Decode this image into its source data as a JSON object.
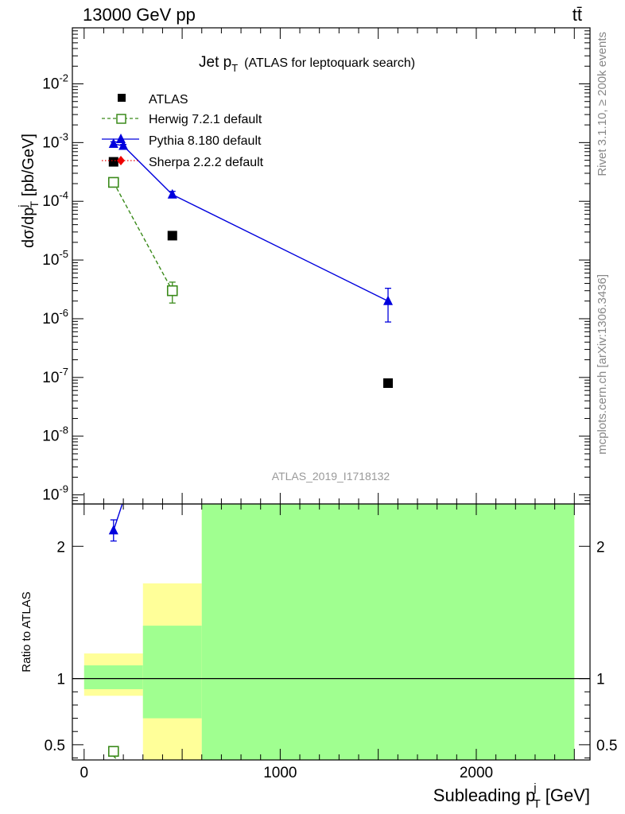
{
  "header": {
    "energy": "13000 GeV pp",
    "process": "tt̄"
  },
  "side": {
    "rivet": "Rivet 3.1.10, ≥ 200k events",
    "mcplots": "mcplots.cern.ch [arXiv:1306.3436]"
  },
  "chart_data": [
    {
      "type": "scatter",
      "title": "Jet p",
      "title_sub": "T",
      "title_note": "(ATLAS for leptoquark search)",
      "analysis": "ATLAS_2019_I1718132",
      "ylabel": "dσ/dp",
      "ylabel_sup": "j",
      "ylabel_sub": "T",
      "ylabel_unit": "[pb/GeV]",
      "yscale": "log",
      "ylim": [
        7e-10,
        0.09
      ],
      "xlim": [
        -60,
        2580
      ],
      "ytick_labels": [
        "10",
        "10",
        "10",
        "10",
        "10",
        "10",
        "10",
        "10"
      ],
      "ytick_exponents": [
        "-2",
        "-3",
        "-4",
        "-5",
        "-6",
        "-7",
        "-8",
        "-9"
      ],
      "legend_position": "top-left",
      "series": [
        {
          "name": "ATLAS",
          "color": "#000000",
          "marker": "square",
          "x": [
            150,
            450,
            1550
          ],
          "y": [
            0.00047,
            2.6e-05,
            8e-08
          ]
        },
        {
          "name": "Herwig 7.2.1 default",
          "color": "#3a8a1a",
          "marker": "open-square",
          "line": "dashed",
          "x": [
            150,
            450
          ],
          "y": [
            0.00021,
            3e-06
          ],
          "err_low": [
            0.00019,
            1.85e-06
          ],
          "err_high": [
            0.00023,
            4.2e-06
          ]
        },
        {
          "name": "Pythia 8.180 default",
          "color": "#0000dd",
          "marker": "triangle",
          "line": "solid",
          "x": [
            150,
            200,
            450,
            1550
          ],
          "y": [
            0.00095,
            0.00088,
            0.00013,
            2e-06
          ],
          "err_low": [
            0.00088,
            0.00083,
            0.000115,
            8.8e-07
          ],
          "err_high": [
            0.00103,
            0.00093,
            0.000148,
            3.3e-06
          ]
        },
        {
          "name": "Sherpa 2.2.2 default",
          "color": "#ee0000",
          "marker": "diamond",
          "line": "dotted",
          "x": [],
          "y": []
        }
      ]
    },
    {
      "type": "scatter",
      "ylabel": "Ratio to ATLAS",
      "xlabel": "Subleading p",
      "xlabel_sup": "j",
      "xlabel_sub": "T",
      "xlabel_unit": "[GeV]",
      "xlim": [
        -60,
        2580
      ],
      "ylim": [
        0.385,
        2.32
      ],
      "xticks": [
        0,
        1000,
        2000
      ],
      "xtick_labels": [
        "0",
        "1000",
        "2000"
      ],
      "yticks": [
        0.5,
        1,
        2
      ],
      "ytick_labels": [
        "0.5",
        "1",
        "2"
      ],
      "bands": [
        {
          "x0": 0,
          "x1": 300,
          "yellow": [
            0.87,
            1.19
          ],
          "green": [
            0.92,
            1.1
          ]
        },
        {
          "x0": 300,
          "x1": 600,
          "yellow": [
            0.385,
            1.72
          ],
          "green": [
            0.7,
            1.4
          ]
        },
        {
          "x0": 600,
          "x1": 2500,
          "yellow": [
            0.385,
            2.32
          ],
          "green": [
            0.385,
            2.32
          ]
        }
      ],
      "reference_line": 1,
      "series": [
        {
          "name": "Herwig 7.2.1 default",
          "color": "#3a8a1a",
          "marker": "open-square",
          "x": [
            150
          ],
          "y": [
            0.45
          ],
          "err_low": [
            0.425
          ],
          "err_high": [
            0.475
          ]
        },
        {
          "name": "Pythia 8.180 default",
          "color": "#0000dd",
          "marker": "triangle",
          "x": [
            150
          ],
          "y": [
            2.12
          ],
          "err_low": [
            2.04
          ],
          "err_high": [
            2.2
          ]
        }
      ]
    }
  ]
}
